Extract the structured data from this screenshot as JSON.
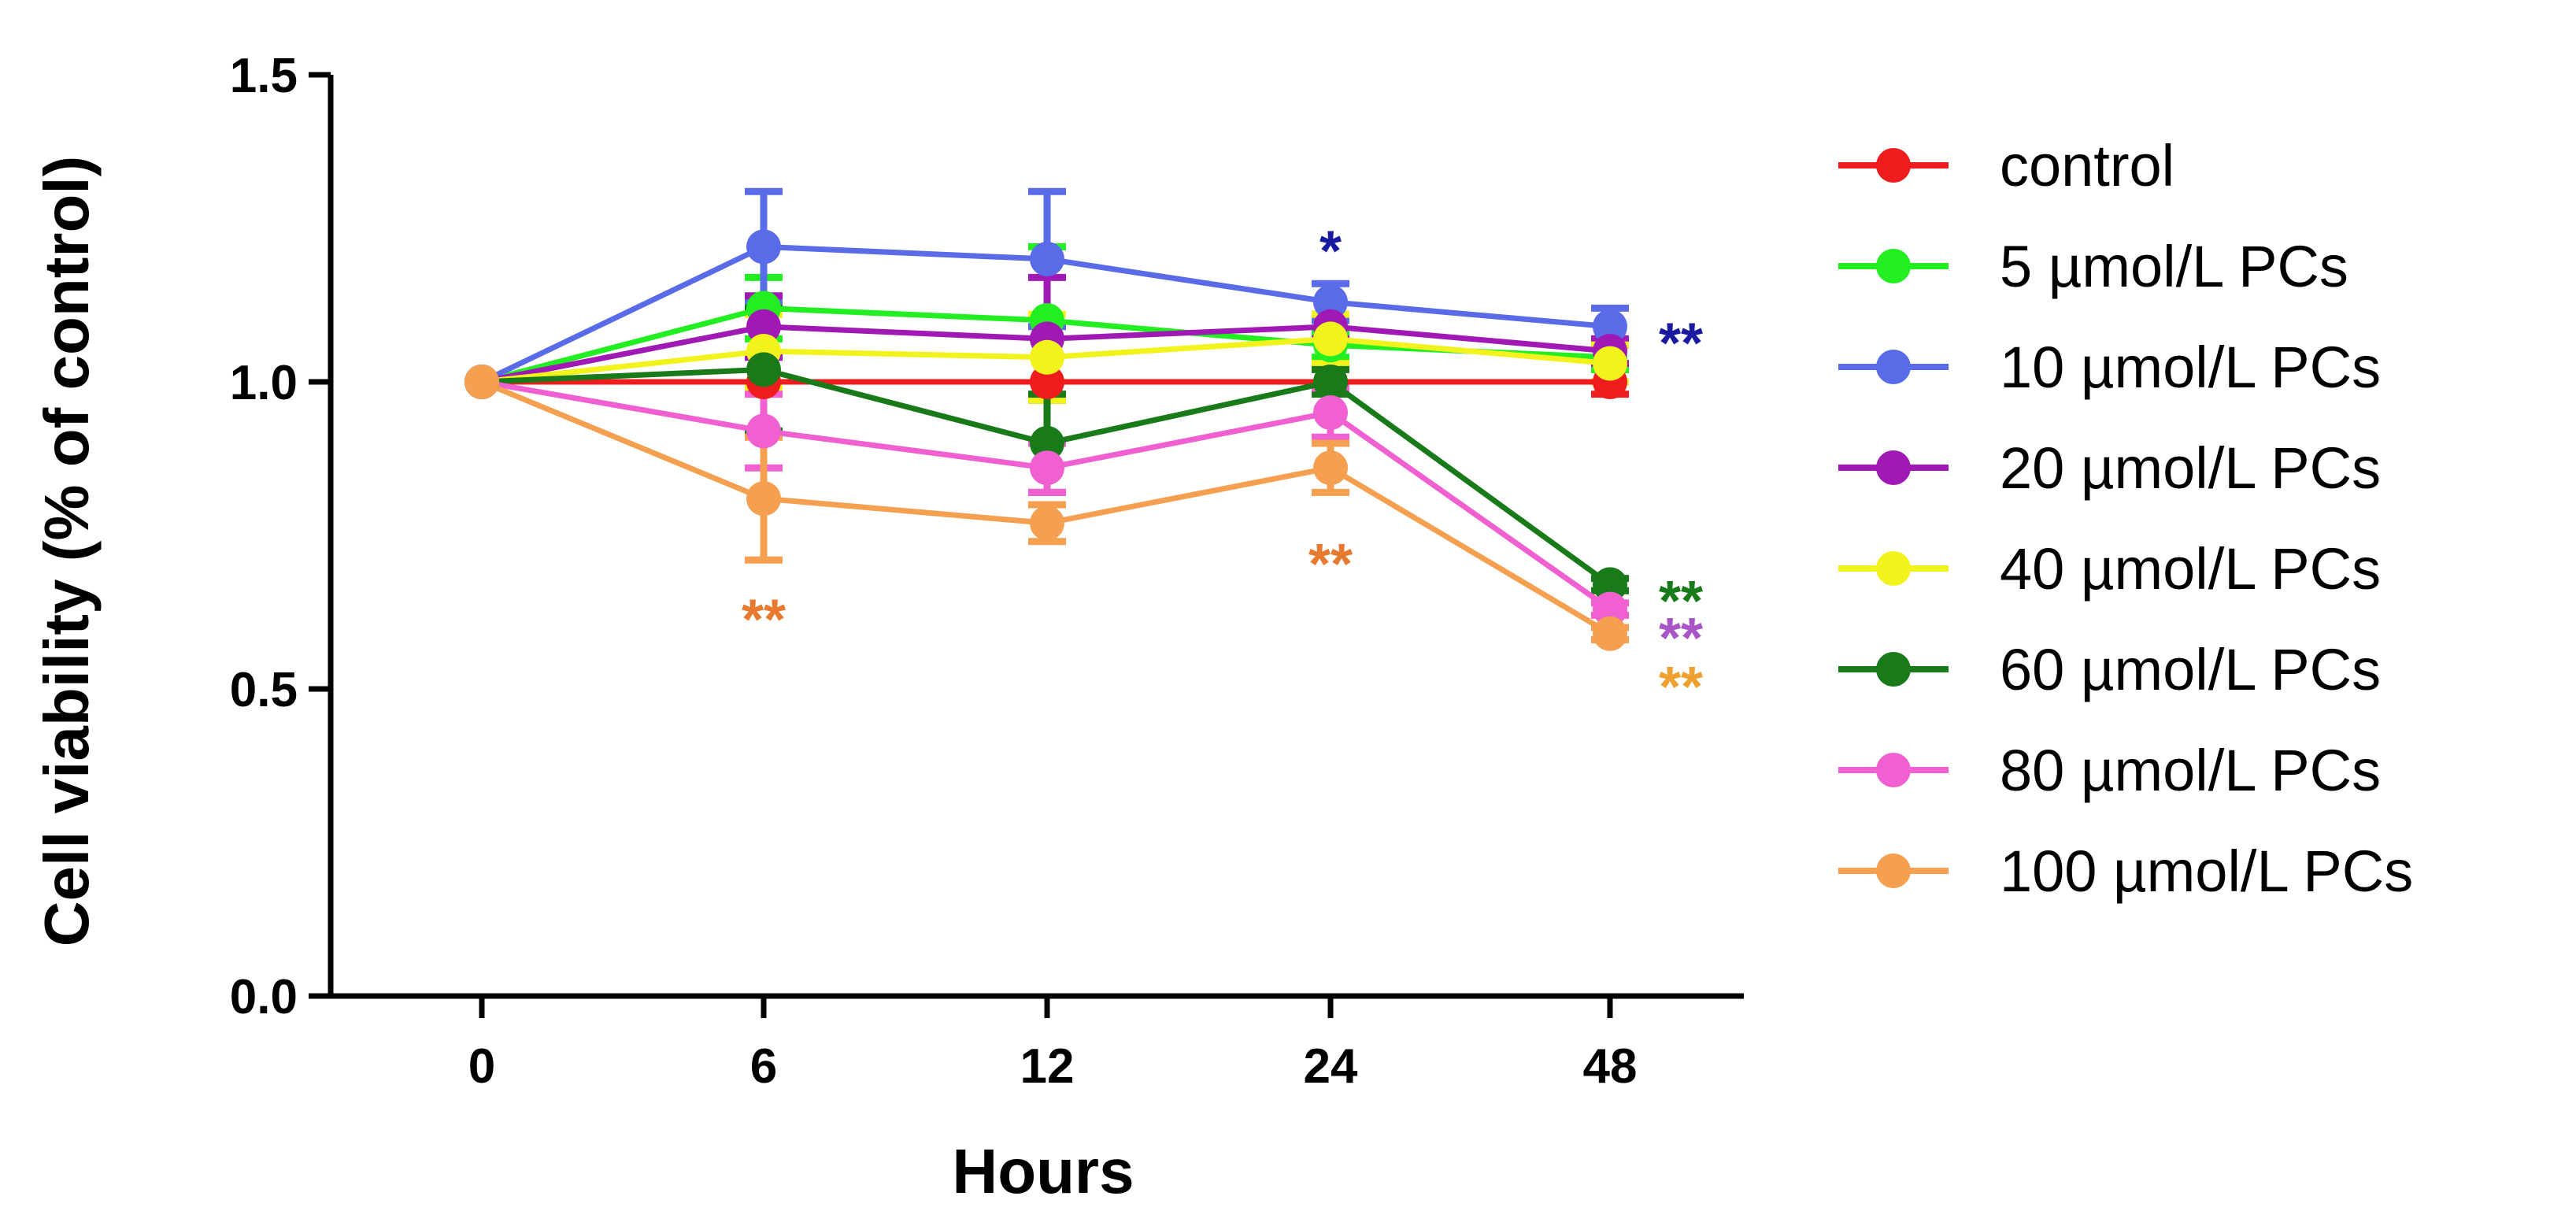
{
  "chart_data": {
    "type": "line",
    "title": "",
    "xlabel": "Hours",
    "ylabel": "Cell viability (% of control)",
    "x": [
      "0",
      "6",
      "12",
      "24",
      "48"
    ],
    "yticks": [
      "0.0",
      "0.5",
      "1.0",
      "1.5"
    ],
    "ylim": [
      0,
      1.5
    ],
    "grid": false,
    "legend_position": "right",
    "series": [
      {
        "name": "control",
        "color": "#ee1c1c",
        "values": [
          1.0,
          1.0,
          1.0,
          1.0,
          1.0
        ],
        "errors": [
          0,
          0,
          0,
          0,
          0.02
        ]
      },
      {
        "name": "5 µmol/L PCs",
        "color": "#22ee22",
        "values": [
          1.0,
          1.12,
          1.1,
          1.06,
          1.04
        ],
        "errors": [
          0,
          0.05,
          0.12,
          0.02,
          0.02
        ]
      },
      {
        "name": "10 µmol/L PCs",
        "color": "#5a6be8",
        "values": [
          1.0,
          1.22,
          1.2,
          1.13,
          1.09
        ],
        "errors": [
          0,
          0.09,
          0.11,
          0.03,
          0.03
        ]
      },
      {
        "name": "20 µmol/L PCs",
        "color": "#a019b4",
        "values": [
          1.0,
          1.09,
          1.07,
          1.09,
          1.05
        ],
        "errors": [
          0,
          0.05,
          0.1,
          0.02,
          0.02
        ]
      },
      {
        "name": "40 µmol/L PCs",
        "color": "#f2f21c",
        "values": [
          1.0,
          1.05,
          1.04,
          1.07,
          1.03
        ],
        "errors": [
          0,
          0.06,
          0.07,
          0.04,
          0.03
        ]
      },
      {
        "name": "60 µmol/L PCs",
        "color": "#187a18",
        "values": [
          1.0,
          1.02,
          0.9,
          1.0,
          0.67
        ],
        "errors": [
          0,
          0.1,
          0.08,
          0.02,
          0.01
        ]
      },
      {
        "name": "80 µmol/L PCs",
        "color": "#f060d0",
        "values": [
          1.0,
          0.92,
          0.86,
          0.95,
          0.63
        ],
        "errors": [
          0,
          0.06,
          0.04,
          0.04,
          0.01
        ]
      },
      {
        "name": "100 µmol/L PCs",
        "color": "#f5a050",
        "values": [
          1.0,
          0.81,
          0.77,
          0.86,
          0.59
        ],
        "errors": [
          0,
          0.1,
          0.03,
          0.04,
          0.01
        ]
      }
    ],
    "annotations": [
      {
        "text": "**",
        "x_index": 1,
        "y": 0.62,
        "color": "#e87a30"
      },
      {
        "text": "*",
        "x_index": 3,
        "y": 1.22,
        "color": "#1a1aa0"
      },
      {
        "text": "**",
        "x_index": 3,
        "y": 0.71,
        "color": "#e87a30"
      },
      {
        "text": "**",
        "x_index": 4.25,
        "y": 1.07,
        "color": "#1a1aa0"
      },
      {
        "text": "**",
        "x_index": 4.25,
        "y": 0.65,
        "color": "#187a18"
      },
      {
        "text": "**",
        "x_index": 4.25,
        "y": 0.59,
        "color": "#a855c8"
      },
      {
        "text": "**",
        "x_index": 4.25,
        "y": 0.51,
        "color": "#f0a030"
      }
    ]
  }
}
